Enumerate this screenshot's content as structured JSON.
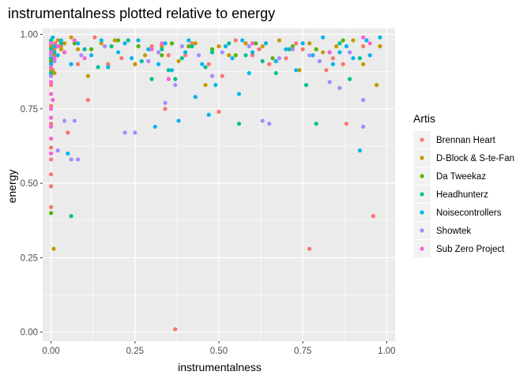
{
  "chart_data": {
    "type": "scatter",
    "title": "instrumentalness plotted relative to energy",
    "xlabel": "instrumentalness",
    "ylabel": "energy",
    "xlim": [
      -0.025,
      1.025
    ],
    "ylim": [
      -0.03,
      1.02
    ],
    "xticks": [
      0.0,
      0.25,
      0.5,
      0.75,
      1.0
    ],
    "xtick_labels": [
      "0.00",
      "0.25",
      "0.50",
      "0.75",
      "1.00"
    ],
    "yticks": [
      0.0,
      0.25,
      0.5,
      0.75,
      1.0
    ],
    "ytick_labels": [
      "0.00",
      "0.25",
      "0.50",
      "0.75",
      "1.00"
    ],
    "grid": true,
    "legend_title": "Artis",
    "legend_position": "right",
    "series": [
      {
        "name": "Brennan Heart",
        "color": "#F8766D",
        "points": [
          [
            0.0,
            0.42
          ],
          [
            0.0,
            0.49
          ],
          [
            0.0,
            0.53
          ],
          [
            0.0,
            0.58
          ],
          [
            0.0,
            0.62
          ],
          [
            0.0,
            0.7
          ],
          [
            0.0,
            0.76
          ],
          [
            0.0,
            0.83
          ],
          [
            0.0,
            0.86
          ],
          [
            0.0,
            0.9
          ],
          [
            0.0,
            0.93
          ],
          [
            0.0,
            0.96
          ],
          [
            0.0,
            0.98
          ],
          [
            0.005,
            0.88
          ],
          [
            0.005,
            0.92
          ],
          [
            0.01,
            0.95
          ],
          [
            0.012,
            0.97
          ],
          [
            0.02,
            0.93
          ],
          [
            0.03,
            0.96
          ],
          [
            0.05,
            0.67
          ],
          [
            0.08,
            0.9
          ],
          [
            0.11,
            0.78
          ],
          [
            0.13,
            0.99
          ],
          [
            0.17,
            0.9
          ],
          [
            0.21,
            0.92
          ],
          [
            0.3,
            0.96
          ],
          [
            0.34,
            0.75
          ],
          [
            0.35,
            0.93
          ],
          [
            0.37,
            0.01
          ],
          [
            0.4,
            0.93
          ],
          [
            0.42,
            0.97
          ],
          [
            0.47,
            0.9
          ],
          [
            0.5,
            0.74
          ],
          [
            0.51,
            0.86
          ],
          [
            0.55,
            0.98
          ],
          [
            0.6,
            0.93
          ],
          [
            0.62,
            0.95
          ],
          [
            0.65,
            0.9
          ],
          [
            0.7,
            0.92
          ],
          [
            0.73,
            0.97
          ],
          [
            0.75,
            0.95
          ],
          [
            0.77,
            0.28
          ],
          [
            0.82,
            0.88
          ],
          [
            0.84,
            0.92
          ],
          [
            0.87,
            0.9
          ],
          [
            0.88,
            0.7
          ],
          [
            0.93,
            0.96
          ],
          [
            0.96,
            0.39
          ]
        ]
      },
      {
        "name": "D-Block & S-te-Fan",
        "color": "#C49A00",
        "points": [
          [
            0.0,
            0.88
          ],
          [
            0.0,
            0.9
          ],
          [
            0.0,
            0.92
          ],
          [
            0.0,
            0.94
          ],
          [
            0.0,
            0.96
          ],
          [
            0.0,
            0.98
          ],
          [
            0.008,
            0.28
          ],
          [
            0.01,
            0.87
          ],
          [
            0.01,
            0.93
          ],
          [
            0.015,
            0.96
          ],
          [
            0.02,
            0.98
          ],
          [
            0.03,
            0.95
          ],
          [
            0.04,
            0.97
          ],
          [
            0.06,
            0.99
          ],
          [
            0.08,
            0.95
          ],
          [
            0.11,
            0.86
          ],
          [
            0.15,
            0.97
          ],
          [
            0.19,
            0.98
          ],
          [
            0.25,
            0.9
          ],
          [
            0.28,
            0.93
          ],
          [
            0.33,
            0.96
          ],
          [
            0.38,
            0.91
          ],
          [
            0.43,
            0.97
          ],
          [
            0.46,
            0.83
          ],
          [
            0.5,
            0.96
          ],
          [
            0.53,
            0.93
          ],
          [
            0.58,
            0.97
          ],
          [
            0.63,
            0.96
          ],
          [
            0.68,
            0.98
          ],
          [
            0.74,
            0.88
          ],
          [
            0.77,
            0.97
          ],
          [
            0.81,
            0.94
          ],
          [
            0.85,
            0.96
          ],
          [
            0.9,
            0.98
          ],
          [
            0.93,
            0.9
          ],
          [
            0.97,
            0.83
          ],
          [
            0.98,
            0.96
          ]
        ]
      },
      {
        "name": "Da Tweekaz",
        "color": "#53B400",
        "points": [
          [
            0.0,
            0.4
          ],
          [
            0.0,
            0.87
          ],
          [
            0.0,
            0.91
          ],
          [
            0.0,
            0.95
          ],
          [
            0.0,
            0.97
          ],
          [
            0.01,
            0.92
          ],
          [
            0.02,
            0.96
          ],
          [
            0.04,
            0.94
          ],
          [
            0.07,
            0.97
          ],
          [
            0.12,
            0.95
          ],
          [
            0.2,
            0.98
          ],
          [
            0.26,
            0.96
          ],
          [
            0.33,
            0.93
          ],
          [
            0.36,
            0.97
          ],
          [
            0.41,
            0.96
          ],
          [
            0.48,
            0.95
          ],
          [
            0.55,
            0.93
          ],
          [
            0.61,
            0.97
          ],
          [
            0.66,
            0.92
          ],
          [
            0.72,
            0.96
          ],
          [
            0.79,
            0.95
          ],
          [
            0.87,
            0.98
          ]
        ]
      },
      {
        "name": "Headhunterz",
        "color": "#00C094",
        "points": [
          [
            0.0,
            0.87
          ],
          [
            0.0,
            0.92
          ],
          [
            0.0,
            0.95
          ],
          [
            0.0,
            0.98
          ],
          [
            0.01,
            0.94
          ],
          [
            0.03,
            0.97
          ],
          [
            0.06,
            0.39
          ],
          [
            0.1,
            0.95
          ],
          [
            0.14,
            0.89
          ],
          [
            0.18,
            0.96
          ],
          [
            0.23,
            0.98
          ],
          [
            0.27,
            0.91
          ],
          [
            0.3,
            0.85
          ],
          [
            0.33,
            0.95
          ],
          [
            0.35,
            0.88
          ],
          [
            0.37,
            0.85
          ],
          [
            0.39,
            0.92
          ],
          [
            0.42,
            0.96
          ],
          [
            0.46,
            0.89
          ],
          [
            0.48,
            0.94
          ],
          [
            0.53,
            0.97
          ],
          [
            0.56,
            0.7
          ],
          [
            0.58,
            0.93
          ],
          [
            0.63,
            0.91
          ],
          [
            0.67,
            0.87
          ],
          [
            0.71,
            0.95
          ],
          [
            0.76,
            0.83
          ],
          [
            0.79,
            0.7
          ],
          [
            0.83,
            0.94
          ],
          [
            0.86,
            0.97
          ],
          [
            0.89,
            0.85
          ],
          [
            0.92,
            0.92
          ]
        ]
      },
      {
        "name": "Noisecontrollers",
        "color": "#00B6EB",
        "points": [
          [
            0.0,
            0.9
          ],
          [
            0.0,
            0.94
          ],
          [
            0.0,
            0.97
          ],
          [
            0.005,
            0.99
          ],
          [
            0.01,
            0.96
          ],
          [
            0.02,
            0.93
          ],
          [
            0.03,
            0.98
          ],
          [
            0.05,
            0.6
          ],
          [
            0.06,
            0.9
          ],
          [
            0.08,
            0.97
          ],
          [
            0.12,
            0.93
          ],
          [
            0.15,
            0.98
          ],
          [
            0.17,
            0.89
          ],
          [
            0.2,
            0.94
          ],
          [
            0.22,
            0.97
          ],
          [
            0.24,
            0.92
          ],
          [
            0.26,
            0.98
          ],
          [
            0.29,
            0.95
          ],
          [
            0.31,
            0.69
          ],
          [
            0.32,
            0.9
          ],
          [
            0.34,
            0.97
          ],
          [
            0.36,
            0.88
          ],
          [
            0.38,
            0.71
          ],
          [
            0.4,
            0.94
          ],
          [
            0.41,
            0.98
          ],
          [
            0.43,
            0.79
          ],
          [
            0.45,
            0.9
          ],
          [
            0.47,
            0.73
          ],
          [
            0.49,
            0.83
          ],
          [
            0.52,
            0.96
          ],
          [
            0.54,
            0.92
          ],
          [
            0.56,
            0.8
          ],
          [
            0.57,
            0.98
          ],
          [
            0.59,
            0.87
          ],
          [
            0.6,
            0.94
          ],
          [
            0.64,
            0.97
          ],
          [
            0.67,
            0.91
          ],
          [
            0.7,
            0.95
          ],
          [
            0.73,
            0.88
          ],
          [
            0.75,
            0.97
          ],
          [
            0.78,
            0.93
          ],
          [
            0.81,
            0.99
          ],
          [
            0.84,
            0.9
          ],
          [
            0.86,
            0.94
          ],
          [
            0.88,
            0.96
          ],
          [
            0.9,
            0.92
          ],
          [
            0.92,
            0.61
          ],
          [
            0.94,
            0.98
          ],
          [
            0.95,
            0.93
          ],
          [
            0.98,
            0.99
          ]
        ]
      },
      {
        "name": "Showtek",
        "color": "#A58AFF",
        "points": [
          [
            0.0,
            0.86
          ],
          [
            0.0,
            0.93
          ],
          [
            0.01,
            0.91
          ],
          [
            0.02,
            0.61
          ],
          [
            0.04,
            0.71
          ],
          [
            0.06,
            0.58
          ],
          [
            0.07,
            0.71
          ],
          [
            0.08,
            0.58
          ],
          [
            0.09,
            0.93
          ],
          [
            0.16,
            0.96
          ],
          [
            0.22,
            0.67
          ],
          [
            0.25,
            0.67
          ],
          [
            0.29,
            0.91
          ],
          [
            0.32,
            0.94
          ],
          [
            0.34,
            0.77
          ],
          [
            0.37,
            0.83
          ],
          [
            0.39,
            0.96
          ],
          [
            0.44,
            0.93
          ],
          [
            0.48,
            0.86
          ],
          [
            0.51,
            0.94
          ],
          [
            0.59,
            0.96
          ],
          [
            0.63,
            0.71
          ],
          [
            0.65,
            0.7
          ],
          [
            0.68,
            0.92
          ],
          [
            0.72,
            0.95
          ],
          [
            0.77,
            0.93
          ],
          [
            0.8,
            0.91
          ],
          [
            0.83,
            0.84
          ],
          [
            0.86,
            0.82
          ],
          [
            0.89,
            0.94
          ],
          [
            0.93,
            0.69
          ],
          [
            0.93,
            0.78
          ]
        ]
      },
      {
        "name": "Sub Zero Project",
        "color": "#FB61D7",
        "points": [
          [
            0.0,
            0.6
          ],
          [
            0.0,
            0.65
          ],
          [
            0.0,
            0.69
          ],
          [
            0.0,
            0.72
          ],
          [
            0.0,
            0.75
          ],
          [
            0.0,
            0.8
          ],
          [
            0.0,
            0.84
          ],
          [
            0.0,
            0.89
          ],
          [
            0.0,
            0.94
          ],
          [
            0.0,
            0.97
          ],
          [
            0.005,
            0.78
          ],
          [
            0.01,
            0.92
          ],
          [
            0.02,
            0.96
          ],
          [
            0.04,
            0.94
          ],
          [
            0.07,
            0.98
          ],
          [
            0.1,
            0.92
          ],
          [
            0.3,
            0.95
          ],
          [
            0.33,
            0.97
          ],
          [
            0.35,
            0.85
          ],
          [
            0.6,
            0.97
          ],
          [
            0.83,
            0.94
          ],
          [
            0.93,
            0.99
          ],
          [
            0.95,
            0.97
          ]
        ]
      }
    ]
  }
}
